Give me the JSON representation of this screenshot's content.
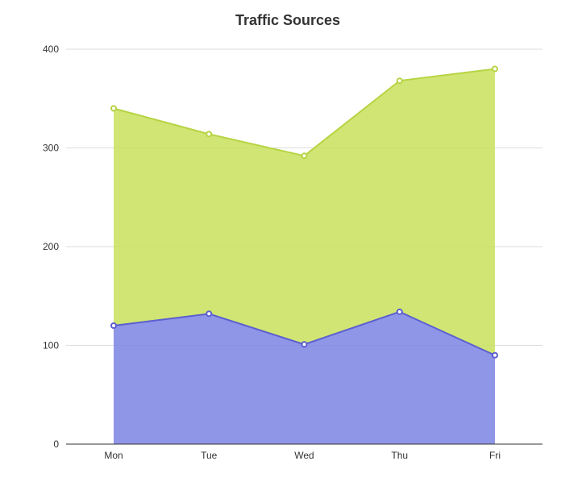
{
  "chart_data": {
    "type": "area",
    "title": "Traffic Sources",
    "xlabel": "",
    "ylabel": "",
    "categories": [
      "Mon",
      "Tue",
      "Wed",
      "Thu",
      "Fri"
    ],
    "y_ticks": [
      "0",
      "100",
      "200",
      "300",
      "400"
    ],
    "ylim": [
      0,
      400
    ],
    "stacked": true,
    "grid": true,
    "legend": "none",
    "series": [
      {
        "color": "#7b83e3",
        "line_color": "#5b5fd0",
        "values": [
          120,
          132,
          101,
          134,
          90
        ]
      },
      {
        "color": "#c9e05c",
        "line_color": "#b6d444",
        "values": [
          220,
          182,
          191,
          234,
          290
        ]
      }
    ]
  }
}
